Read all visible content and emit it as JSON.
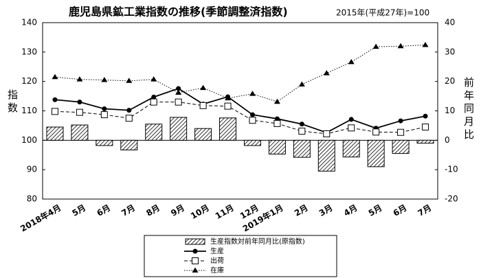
{
  "chart_data": {
    "type": "bar-line",
    "title": "鹿児島県鉱工業指数の推移(季節調整済指数)",
    "subtitle": "2015年(平成27年)=100",
    "y_label": "指数",
    "y2_label": "前年同月比",
    "categories": [
      "2018年4月",
      "5月",
      "6月",
      "7月",
      "8月",
      "9月",
      "10月",
      "11月",
      "12月",
      "2019年1月",
      "2月",
      "3月",
      "4月",
      "5月",
      "6月",
      "7月"
    ],
    "ylim": [
      80,
      140
    ],
    "yticks": [
      80,
      90,
      100,
      110,
      120,
      130,
      140
    ],
    "y2lim": [
      -20,
      40
    ],
    "y2ticks": [
      -20,
      -10,
      0,
      10,
      20,
      30,
      40
    ],
    "grid": false,
    "legend": "bottom",
    "series": [
      {
        "name": "生産指数対前年同月比(原指数)",
        "type": "bar",
        "axis": "y2",
        "color": "#000000",
        "values": [
          4.5,
          5.2,
          -1.8,
          -3.3,
          5.5,
          7.8,
          4.0,
          7.6,
          -1.8,
          -4.7,
          -5.8,
          -10.5,
          -5.7,
          -9.0,
          -4.5,
          -1.0
        ]
      },
      {
        "name": "生産",
        "type": "line",
        "marker": "circle",
        "dash": "solid",
        "color": "#000000",
        "values": [
          113.8,
          113.0,
          110.7,
          110.2,
          114.7,
          117.6,
          112.3,
          114.8,
          108.7,
          107.3,
          105.5,
          102.6,
          107.1,
          104.1,
          106.6,
          108.2
        ]
      },
      {
        "name": "出荷",
        "type": "line",
        "marker": "square",
        "dash": "dashed",
        "color": "#000000",
        "values": [
          109.8,
          109.5,
          108.7,
          107.5,
          113.0,
          113.0,
          111.8,
          111.6,
          106.8,
          105.7,
          103.1,
          102.2,
          104.2,
          102.8,
          102.7,
          104.5
        ]
      },
      {
        "name": "在庫",
        "type": "line",
        "marker": "triangle",
        "dash": "dotted",
        "color": "#000000",
        "values": [
          121.5,
          120.7,
          120.5,
          120.2,
          120.7,
          116.2,
          117.8,
          114.3,
          115.8,
          113.1,
          119.0,
          122.8,
          126.6,
          131.8,
          132.0,
          132.4
        ]
      }
    ]
  }
}
